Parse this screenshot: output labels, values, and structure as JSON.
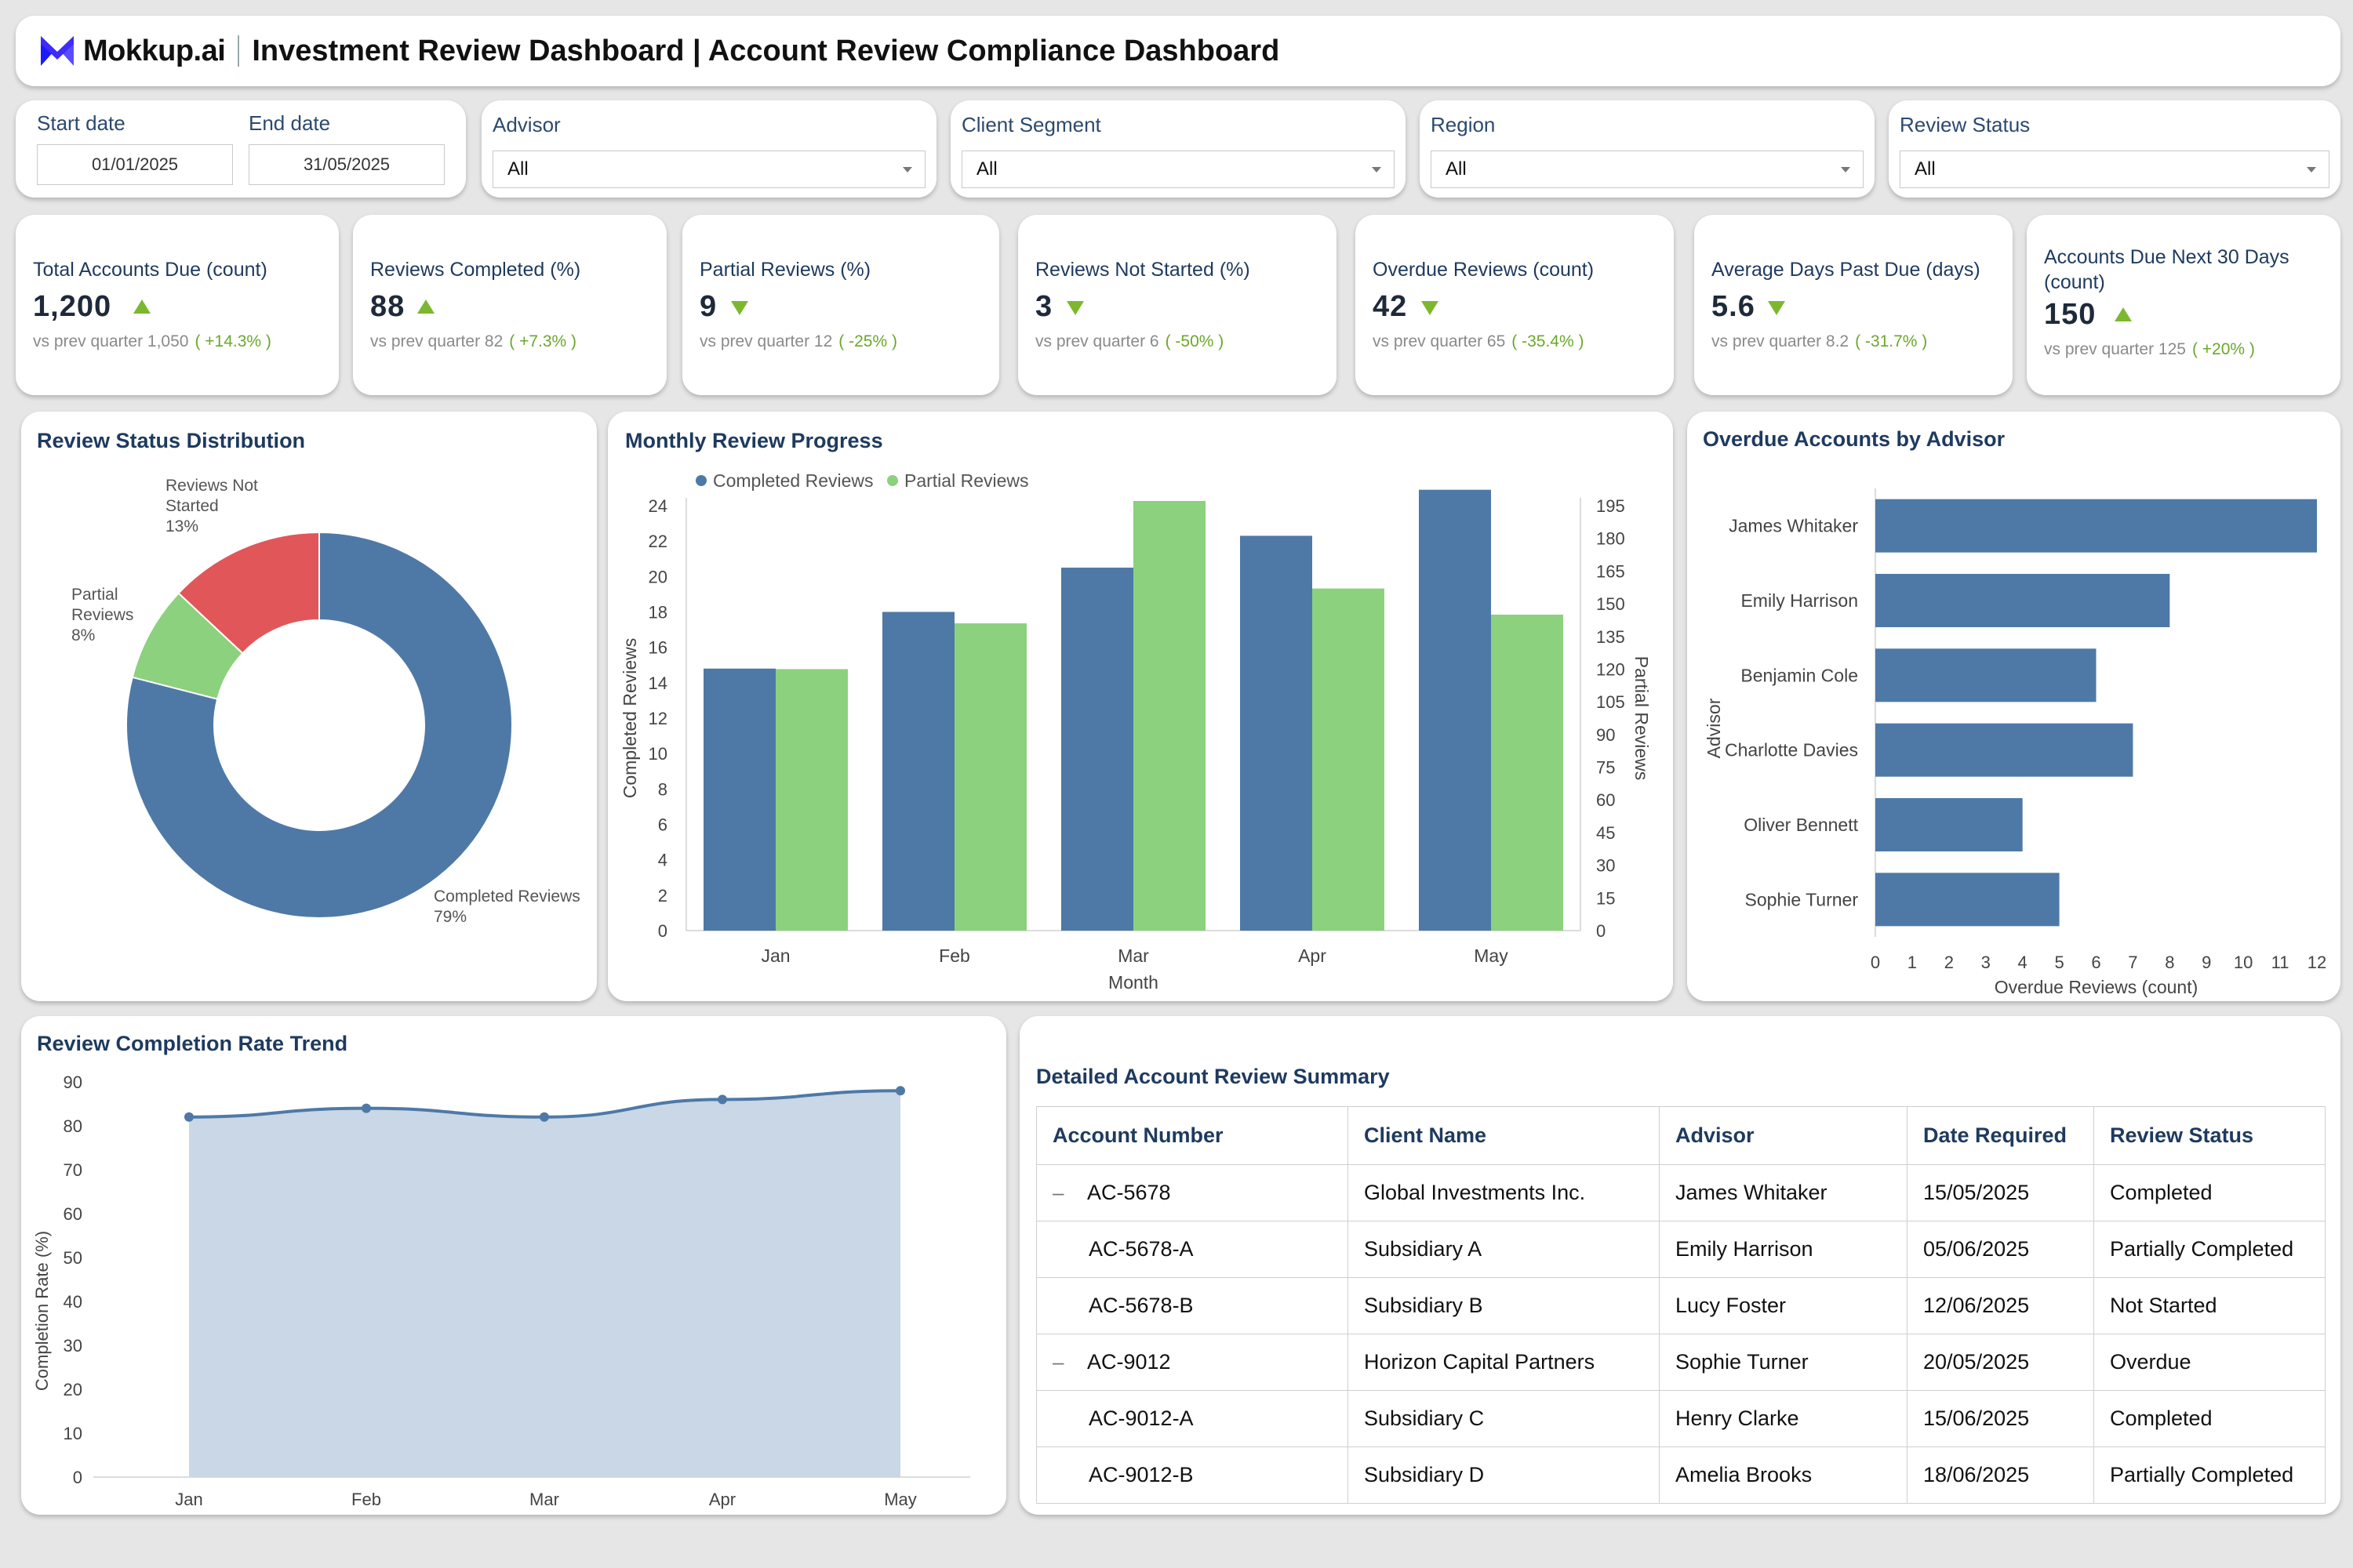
{
  "header": {
    "brand": "Mokkup.ai",
    "title": "Investment Review Dashboard | Account Review Compliance Dashboard"
  },
  "filters": {
    "start_label": "Start date",
    "start_value": "01/01/2025",
    "end_label": "End date",
    "end_value": "31/05/2025",
    "advisor_label": "Advisor",
    "advisor_value": "All",
    "segment_label": "Client Segment",
    "segment_value": "All",
    "region_label": "Region",
    "region_value": "All",
    "status_label": "Review Status",
    "status_value": "All"
  },
  "kpis": [
    {
      "title": "Total Accounts Due (count)",
      "value": "1,200",
      "direction": "up",
      "prev": "vs prev quarter 1,050",
      "change": "( +14.3% )"
    },
    {
      "title": "Reviews Completed (%)",
      "value": "88",
      "direction": "up",
      "prev": "vs prev quarter 82",
      "change": "( +7.3% )"
    },
    {
      "title": "Partial Reviews (%)",
      "value": "9",
      "direction": "down",
      "prev": "vs prev quarter 12",
      "change": "( -25% )"
    },
    {
      "title": "Reviews Not Started (%)",
      "value": "3",
      "direction": "down",
      "prev": "vs prev quarter 6",
      "change": "( -50% )"
    },
    {
      "title": "Overdue Reviews (count)",
      "value": "42",
      "direction": "down",
      "prev": "vs prev quarter 65",
      "change": "( -35.4% )"
    },
    {
      "title": "Average Days Past Due (days)",
      "value": "5.6",
      "direction": "down",
      "prev": "vs prev quarter 8.2",
      "change": "( -31.7% )"
    },
    {
      "title_line1": "Accounts Due Next 30 Days",
      "title_line2": "(count)",
      "value": "150",
      "direction": "up",
      "prev": "vs prev quarter 125",
      "change": "( +20% )"
    }
  ],
  "colors": {
    "blue": "#4e79a7",
    "green": "#8cd17d",
    "red": "#e15759",
    "area": "#c9d7e6",
    "accent_up": "#7cb82f"
  },
  "chart_data": [
    {
      "type": "pie",
      "title": "Review Status Distribution",
      "labels": [
        "Completed Reviews",
        "Partial Reviews",
        "Reviews Not Started"
      ],
      "values": [
        79,
        8,
        13
      ],
      "percent_labels": [
        "79%",
        "8%",
        "13%"
      ],
      "label_lines": [
        [
          "Completed Reviews",
          "79%"
        ],
        [
          "Partial",
          "Reviews",
          "8%"
        ],
        [
          "Reviews Not",
          "Started",
          "13%"
        ]
      ]
    },
    {
      "type": "bar",
      "title": "Monthly Review Progress",
      "categories": [
        "Jan",
        "Feb",
        "Mar",
        "Apr",
        "May"
      ],
      "series": [
        {
          "name": "Completed Reviews",
          "axis": "left",
          "values": [
            14.8,
            18,
            20.5,
            22.3,
            24.9
          ]
        },
        {
          "name": "Partial Reviews",
          "axis": "right",
          "values": [
            120,
            141,
            201,
            157,
            145
          ]
        }
      ],
      "xlabel": "Month",
      "ylabel": "Completed Reviews",
      "y2label": "Partial Reviews",
      "ylim": [
        0,
        24
      ],
      "yticks": [
        0,
        2,
        4,
        6,
        8,
        10,
        12,
        14,
        16,
        18,
        20,
        22,
        24
      ],
      "y2lim": [
        0,
        195
      ],
      "y2ticks": [
        0,
        15,
        30,
        45,
        60,
        75,
        90,
        105,
        120,
        135,
        150,
        165,
        180,
        195
      ],
      "legend": "top"
    },
    {
      "type": "bar",
      "orientation": "horizontal",
      "title": "Overdue Accounts by Advisor",
      "categories": [
        "James Whitaker",
        "Emily Harrison",
        "Benjamin Cole",
        "Charlotte Davies",
        "Oliver Bennett",
        "Sophie Turner"
      ],
      "values": [
        12,
        8,
        6,
        7,
        4,
        5
      ],
      "xlabel": "Overdue Reviews (count)",
      "ylabel": "Advisor",
      "xlim": [
        0,
        12
      ],
      "xticks": [
        0,
        1,
        2,
        3,
        4,
        5,
        6,
        7,
        8,
        9,
        10,
        11,
        12
      ]
    },
    {
      "type": "area",
      "title": "Review Completion Rate Trend",
      "categories": [
        "Jan",
        "Feb",
        "Mar",
        "Apr",
        "May"
      ],
      "values": [
        82,
        84,
        82,
        86,
        88
      ],
      "ylabel": "Completion Rate (%)",
      "ylim": [
        0,
        90
      ],
      "yticks": [
        0,
        10,
        20,
        30,
        40,
        50,
        60,
        70,
        80,
        90
      ]
    }
  ],
  "table": {
    "title": "Detailed Account Review Summary",
    "columns": [
      "Account Number",
      "Client Name",
      "Advisor",
      "Date Required",
      "Review Status"
    ],
    "toggle_symbol": "–",
    "rows": [
      {
        "level": 0,
        "cells": [
          "AC-5678",
          "Global Investments Inc.",
          "James Whitaker",
          "15/05/2025",
          "Completed"
        ]
      },
      {
        "level": 1,
        "cells": [
          "AC-5678-A",
          "Subsidiary A",
          "Emily Harrison",
          "05/06/2025",
          "Partially Completed"
        ]
      },
      {
        "level": 1,
        "cells": [
          "AC-5678-B",
          "Subsidiary B",
          "Lucy Foster",
          "12/06/2025",
          "Not Started"
        ]
      },
      {
        "level": 0,
        "cells": [
          "AC-9012",
          "Horizon Capital Partners",
          "Sophie Turner",
          "20/05/2025",
          "Overdue"
        ]
      },
      {
        "level": 1,
        "cells": [
          "AC-9012-A",
          "Subsidiary C",
          "Henry Clarke",
          "15/06/2025",
          "Completed"
        ]
      },
      {
        "level": 1,
        "cells": [
          "AC-9012-B",
          "Subsidiary D",
          "Amelia Brooks",
          "18/06/2025",
          "Partially Completed"
        ]
      }
    ]
  }
}
